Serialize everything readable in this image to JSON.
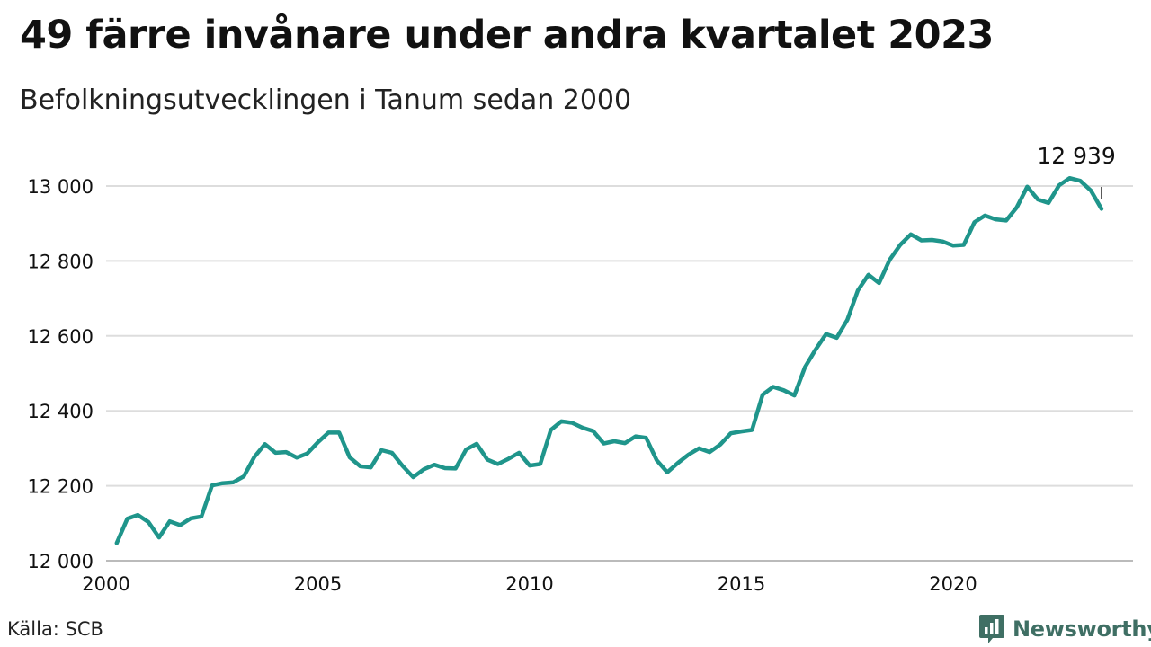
{
  "title": "49 färre invånare under andra kvartalet 2023",
  "subtitle": "Befolkningsutvecklingen i Tanum sedan 2000",
  "source": "Källa: SCB",
  "brand": "Newsworthy",
  "colors": {
    "line": "#1f958b",
    "grid": "#dddddd",
    "brand": "#3f6f64"
  },
  "chart_data": {
    "type": "line",
    "x_unit": "year (quarterly observations)",
    "ylim": [
      12000,
      13050
    ],
    "yticks": [
      {
        "value": 12000,
        "label": "12 000"
      },
      {
        "value": 12200,
        "label": "12 200"
      },
      {
        "value": 12400,
        "label": "12 400"
      },
      {
        "value": 12600,
        "label": "12 600"
      },
      {
        "value": 12800,
        "label": "12 800"
      },
      {
        "value": 13000,
        "label": "13 000"
      }
    ],
    "xticks": [
      {
        "value": 2000,
        "label": "2000"
      },
      {
        "value": 2005,
        "label": "2005"
      },
      {
        "value": 2010,
        "label": "2010"
      },
      {
        "value": 2015,
        "label": "2015"
      },
      {
        "value": 2020,
        "label": "2020"
      }
    ],
    "grid": "horizontal",
    "annotation": {
      "label": "12 939",
      "x": 2023.5,
      "y": 12939
    },
    "series": [
      {
        "points": [
          [
            2000.25,
            12047
          ],
          [
            2000.5,
            12112
          ],
          [
            2000.75,
            12122
          ],
          [
            2001.0,
            12103
          ],
          [
            2001.25,
            12062
          ],
          [
            2001.5,
            12105
          ],
          [
            2001.75,
            12095
          ],
          [
            2002.0,
            12113
          ],
          [
            2002.25,
            12118
          ],
          [
            2002.5,
            12201
          ],
          [
            2002.75,
            12207
          ],
          [
            2003.0,
            12209
          ],
          [
            2003.25,
            12225
          ],
          [
            2003.5,
            12277
          ],
          [
            2003.75,
            12311
          ],
          [
            2004.0,
            12288
          ],
          [
            2004.25,
            12290
          ],
          [
            2004.5,
            12275
          ],
          [
            2004.75,
            12286
          ],
          [
            2005.0,
            12316
          ],
          [
            2005.25,
            12342
          ],
          [
            2005.5,
            12342
          ],
          [
            2005.75,
            12276
          ],
          [
            2006.0,
            12252
          ],
          [
            2006.25,
            12249
          ],
          [
            2006.5,
            12295
          ],
          [
            2006.75,
            12288
          ],
          [
            2007.0,
            12253
          ],
          [
            2007.25,
            12223
          ],
          [
            2007.5,
            12244
          ],
          [
            2007.75,
            12256
          ],
          [
            2008.0,
            12247
          ],
          [
            2008.25,
            12246
          ],
          [
            2008.5,
            12297
          ],
          [
            2008.75,
            12312
          ],
          [
            2009.0,
            12270
          ],
          [
            2009.25,
            12258
          ],
          [
            2009.5,
            12272
          ],
          [
            2009.75,
            12288
          ],
          [
            2010.0,
            12254
          ],
          [
            2010.25,
            12258
          ],
          [
            2010.5,
            12349
          ],
          [
            2010.75,
            12372
          ],
          [
            2011.0,
            12368
          ],
          [
            2011.25,
            12355
          ],
          [
            2011.5,
            12346
          ],
          [
            2011.75,
            12313
          ],
          [
            2012.0,
            12319
          ],
          [
            2012.25,
            12314
          ],
          [
            2012.5,
            12332
          ],
          [
            2012.75,
            12328
          ],
          [
            2013.0,
            12268
          ],
          [
            2013.25,
            12236
          ],
          [
            2013.5,
            12261
          ],
          [
            2013.75,
            12283
          ],
          [
            2014.0,
            12300
          ],
          [
            2014.25,
            12290
          ],
          [
            2014.5,
            12310
          ],
          [
            2014.75,
            12340
          ],
          [
            2015.0,
            12345
          ],
          [
            2015.25,
            12349
          ],
          [
            2015.5,
            12443
          ],
          [
            2015.75,
            12464
          ],
          [
            2016.0,
            12455
          ],
          [
            2016.25,
            12441
          ],
          [
            2016.5,
            12516
          ],
          [
            2016.75,
            12563
          ],
          [
            2017.0,
            12605
          ],
          [
            2017.25,
            12595
          ],
          [
            2017.5,
            12643
          ],
          [
            2017.75,
            12721
          ],
          [
            2018.0,
            12763
          ],
          [
            2018.25,
            12741
          ],
          [
            2018.5,
            12803
          ],
          [
            2018.75,
            12843
          ],
          [
            2019.0,
            12871
          ],
          [
            2019.25,
            12855
          ],
          [
            2019.5,
            12856
          ],
          [
            2019.75,
            12852
          ],
          [
            2020.0,
            12841
          ],
          [
            2020.25,
            12843
          ],
          [
            2020.5,
            12903
          ],
          [
            2020.75,
            12921
          ],
          [
            2021.0,
            12911
          ],
          [
            2021.25,
            12908
          ],
          [
            2021.5,
            12943
          ],
          [
            2021.75,
            12998
          ],
          [
            2022.0,
            12964
          ],
          [
            2022.25,
            12955
          ],
          [
            2022.5,
            13002
          ],
          [
            2022.75,
            13021
          ],
          [
            2023.0,
            13014
          ],
          [
            2023.25,
            12988
          ],
          [
            2023.5,
            12939
          ]
        ]
      }
    ]
  }
}
